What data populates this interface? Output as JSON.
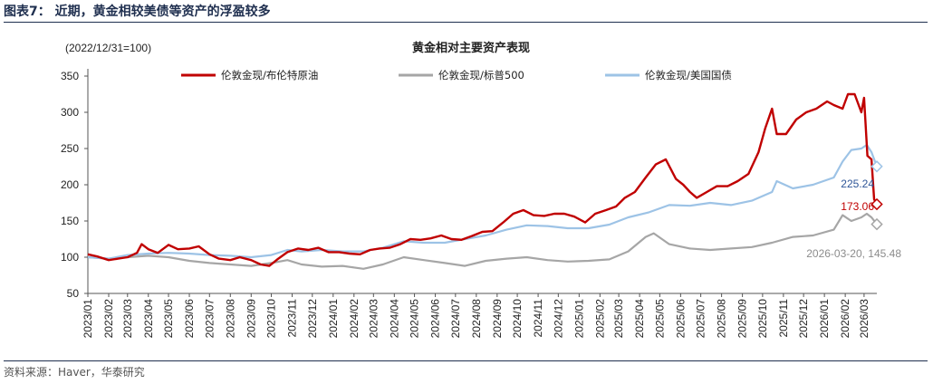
{
  "figure": {
    "label": "图表7：  近期，黄金相较美债等资产的浮盈较多",
    "source": "资料来源：Haver，华泰研究"
  },
  "chart_data": {
    "type": "line",
    "title": "黄金相对主要资产表现",
    "subtitle": "(2022/12/31=100)",
    "ylim": [
      50,
      350
    ],
    "yticks": [
      50,
      100,
      150,
      200,
      250,
      300,
      350
    ],
    "xticks": [
      "2023/01",
      "2023/02",
      "2023/03",
      "2023/04",
      "2023/05",
      "2023/06",
      "2023/07",
      "2023/08",
      "2023/09",
      "2023/10",
      "2023/11",
      "2023/12",
      "2024/01",
      "2024/02",
      "2024/03",
      "2024/04",
      "2024/05",
      "2024/06",
      "2024/07",
      "2024/08",
      "2024/09",
      "2024/10",
      "2024/11",
      "2024/12",
      "2025/01",
      "2025/02",
      "2025/03",
      "2025/04",
      "2025/05",
      "2025/06",
      "2025/07",
      "2025/08",
      "2025/09",
      "2025/10",
      "2025/11",
      "2025/12",
      "2026/01",
      "2026/02",
      "2026/03"
    ],
    "x_range": [
      "2023/01/01",
      "2026/03/20"
    ],
    "legend_position": "top",
    "grid": false,
    "series": [
      {
        "name": "伦敦金现/布伦特原油",
        "color": "#c00000",
        "end_value": 173.06,
        "x": [
          "2023/01/01",
          "2023/01/15",
          "2023/02/01",
          "2023/02/15",
          "2023/03/01",
          "2023/03/15",
          "2023/03/22",
          "2023/04/01",
          "2023/04/15",
          "2023/05/01",
          "2023/05/15",
          "2023/06/01",
          "2023/06/15",
          "2023/07/01",
          "2023/07/15",
          "2023/08/01",
          "2023/08/15",
          "2023/09/01",
          "2023/09/15",
          "2023/09/28",
          "2023/10/10",
          "2023/10/25",
          "2023/11/10",
          "2023/11/25",
          "2023/12/10",
          "2023/12/25",
          "2024/01/10",
          "2024/01/25",
          "2024/02/10",
          "2024/02/25",
          "2024/03/10",
          "2024/03/25",
          "2024/04/10",
          "2024/04/25",
          "2024/05/10",
          "2024/05/25",
          "2024/06/10",
          "2024/06/25",
          "2024/07/10",
          "2024/07/25",
          "2024/08/10",
          "2024/08/25",
          "2024/09/10",
          "2024/09/25",
          "2024/10/10",
          "2024/10/25",
          "2024/11/10",
          "2024/11/25",
          "2024/12/10",
          "2024/12/25",
          "2025/01/10",
          "2025/01/25",
          "2025/02/10",
          "2025/02/25",
          "2025/03/10",
          "2025/03/25",
          "2025/04/10",
          "2025/04/25",
          "2025/05/10",
          "2025/05/25",
          "2025/06/05",
          "2025/06/15",
          "2025/06/25",
          "2025/07/10",
          "2025/07/25",
          "2025/08/10",
          "2025/08/25",
          "2025/09/10",
          "2025/09/25",
          "2025/10/05",
          "2025/10/15",
          "2025/10/22",
          "2025/11/05",
          "2025/11/20",
          "2025/12/05",
          "2025/12/20",
          "2026/01/05",
          "2026/01/15",
          "2026/01/28",
          "2026/02/05",
          "2026/02/15",
          "2026/02/25",
          "2026/03/01",
          "2026/03/06",
          "2026/03/12",
          "2026/03/16",
          "2026/03/20"
        ],
        "values": [
          104,
          101,
          96,
          98,
          100,
          106,
          118,
          111,
          106,
          117,
          111,
          112,
          115,
          104,
          98,
          96,
          100,
          96,
          90,
          88,
          97,
          107,
          112,
          110,
          113,
          107,
          107,
          105,
          104,
          110,
          112,
          113,
          118,
          125,
          124,
          126,
          130,
          125,
          124,
          129,
          135,
          136,
          148,
          160,
          165,
          158,
          157,
          160,
          160,
          156,
          148,
          160,
          165,
          170,
          182,
          190,
          210,
          228,
          235,
          208,
          200,
          190,
          182,
          190,
          198,
          198,
          205,
          215,
          245,
          278,
          305,
          270,
          270,
          290,
          300,
          305,
          315,
          310,
          305,
          325,
          325,
          300,
          320,
          240,
          235,
          180,
          173.06
        ]
      },
      {
        "name": "伦敦金现/标普500",
        "color": "#a6a6a6",
        "end_value": 145.48,
        "end_label": "2026-03-20, 145.48",
        "x": [
          "2023/01/01",
          "2023/02/01",
          "2023/03/01",
          "2023/04/01",
          "2023/05/01",
          "2023/06/01",
          "2023/07/01",
          "2023/08/01",
          "2023/09/01",
          "2023/10/01",
          "2023/10/25",
          "2023/11/15",
          "2023/12/15",
          "2024/01/15",
          "2024/02/15",
          "2024/03/15",
          "2024/04/15",
          "2024/05/15",
          "2024/06/15",
          "2024/07/15",
          "2024/08/15",
          "2024/09/15",
          "2024/10/15",
          "2024/11/15",
          "2024/12/15",
          "2025/01/15",
          "2025/02/15",
          "2025/03/15",
          "2025/04/10",
          "2025/04/22",
          "2025/05/15",
          "2025/06/15",
          "2025/07/15",
          "2025/08/15",
          "2025/09/15",
          "2025/10/15",
          "2025/11/15",
          "2025/12/15",
          "2026/01/15",
          "2026/01/28",
          "2026/02/10",
          "2026/02/25",
          "2026/03/05",
          "2026/03/12",
          "2026/03/20"
        ],
        "values": [
          100,
          98,
          100,
          102,
          100,
          95,
          92,
          90,
          88,
          92,
          96,
          90,
          87,
          88,
          84,
          90,
          100,
          96,
          92,
          88,
          95,
          98,
          100,
          96,
          94,
          95,
          97,
          108,
          128,
          133,
          118,
          112,
          110,
          112,
          114,
          120,
          128,
          130,
          138,
          158,
          150,
          155,
          160,
          155,
          145.48
        ]
      },
      {
        "name": "伦敦金现/美国国债",
        "color": "#9dc3e6",
        "end_value": 225.24,
        "x": [
          "2023/01/01",
          "2023/02/01",
          "2023/03/01",
          "2023/04/01",
          "2023/05/01",
          "2023/06/01",
          "2023/07/01",
          "2023/08/01",
          "2023/09/01",
          "2023/10/01",
          "2023/10/25",
          "2023/11/15",
          "2023/12/15",
          "2024/01/15",
          "2024/02/15",
          "2024/03/15",
          "2024/04/15",
          "2024/05/15",
          "2024/06/15",
          "2024/07/15",
          "2024/08/15",
          "2024/09/15",
          "2024/10/15",
          "2024/11/15",
          "2024/12/15",
          "2025/01/15",
          "2025/02/15",
          "2025/03/15",
          "2025/04/15",
          "2025/05/15",
          "2025/06/15",
          "2025/07/15",
          "2025/08/15",
          "2025/09/15",
          "2025/10/15",
          "2025/10/22",
          "2025/11/15",
          "2025/12/15",
          "2026/01/15",
          "2026/01/28",
          "2026/02/10",
          "2026/02/25",
          "2026/03/05",
          "2026/03/12",
          "2026/03/20"
        ],
        "values": [
          100,
          98,
          103,
          105,
          106,
          105,
          103,
          102,
          100,
          103,
          110,
          108,
          110,
          108,
          108,
          113,
          122,
          120,
          120,
          125,
          130,
          138,
          144,
          143,
          140,
          140,
          145,
          155,
          162,
          172,
          171,
          175,
          172,
          178,
          190,
          205,
          195,
          200,
          210,
          232,
          248,
          250,
          255,
          245,
          225.24
        ]
      }
    ]
  }
}
